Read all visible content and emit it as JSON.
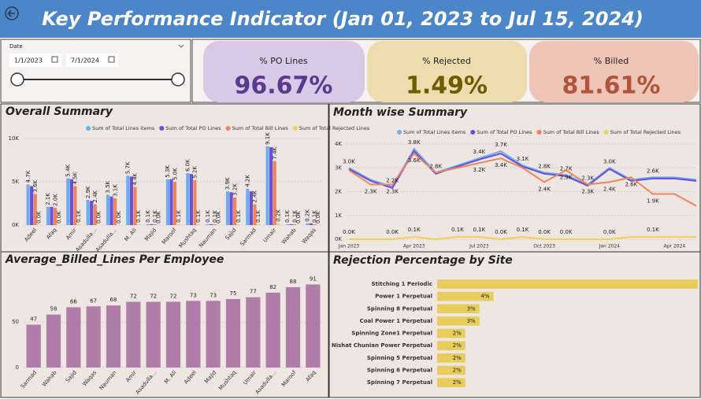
{
  "header": {
    "title": "Key Performance Indicator (Jan 01, 2023 to Jul 15, 2024)"
  },
  "slicer": {
    "label": "Date",
    "start": "1/1/2023",
    "end": "7/1/2024"
  },
  "kpis": [
    {
      "label": "% PO Lines",
      "value": "96.67%"
    },
    {
      "label": "% Rejected",
      "value": "1.49%"
    },
    {
      "label": "% Billed",
      "value": "81.61%"
    }
  ],
  "chart_data": [
    {
      "type": "bar",
      "title": "Overall Summary",
      "categories": [
        "Adeel",
        "Afaq",
        "Amir",
        "Asadulla...",
        "Asadulla...",
        "M. Ali",
        "Majid",
        "Maroof",
        "Mushtaq",
        "Nauman",
        "Sajid",
        "Sarmad",
        "Umair",
        "Wahab",
        "Waqas"
      ],
      "series": [
        {
          "name": "Sum of Total Lines items",
          "color": "#6aaef0",
          "values": [
            4700,
            2100,
            5400,
            2900,
            3500,
            5700,
            100,
            5300,
            6000,
            100,
            3900,
            4200,
            9100,
            100,
            200
          ],
          "value_labels": [
            "4.7K",
            "2.1K",
            "5.4K",
            "2.9K",
            "3.5K",
            "5.7K",
            "0.1K",
            "5.3K",
            "6.0K",
            "0.1K",
            "3.9K",
            "4.2K",
            "9.1K",
            "0.1K",
            "0.2K"
          ]
        },
        {
          "name": "Sum of Total PO Lines",
          "color": "#6a4fd8",
          "values": [
            4500,
            2100,
            5300,
            2800,
            3300,
            5600,
            100,
            5300,
            5900,
            100,
            3800,
            3900,
            9000,
            100,
            200
          ]
        },
        {
          "name": "Sum of Total Bill Lines",
          "color": "#f0845a",
          "values": [
            3600,
            2000,
            4500,
            2400,
            3100,
            4400,
            100,
            5000,
            5200,
            100,
            3200,
            2400,
            7400,
            100,
            100
          ],
          "value_labels": [
            "3.6K",
            "2.0K",
            "4.5K",
            "2.4K",
            "3.1K",
            "4.4K",
            "0.1K",
            "5.0K",
            "5.2K",
            "0.1K",
            "3.2K",
            "2.4K",
            "7.4K",
            "0.1K",
            "0.1K"
          ]
        },
        {
          "name": "Sum of Total Rejected Lines",
          "color": "#f0d060",
          "values": [
            0,
            0,
            100,
            0,
            0,
            100,
            0,
            100,
            100,
            0,
            100,
            100,
            200,
            0,
            0
          ],
          "value_labels": [
            "0.0K",
            "0.0K",
            "0.1K",
            "0.0K",
            "0.0K",
            "0.1K",
            "0.0K",
            "0.1K",
            "0.1K",
            "0.0K",
            "0.1K",
            "0.1K",
            "0.2K",
            "0.0K",
            "0.0K"
          ]
        }
      ],
      "ylim": [
        0,
        10000
      ],
      "yticks": [
        {
          "value": 0,
          "label": "0K"
        },
        {
          "value": 5000,
          "label": "5K"
        },
        {
          "value": 10000,
          "label": "10K"
        }
      ],
      "grid": true,
      "legend": "top"
    },
    {
      "type": "line",
      "title": "Month wise Summary",
      "categories": [
        "Jan 2023",
        null,
        null,
        "Apr 2023",
        null,
        null,
        "Jul 2023",
        null,
        null,
        "Oct 2023",
        null,
        null,
        "Jan 2024",
        null,
        null,
        "Apr 2024",
        null
      ],
      "series": [
        {
          "name": "Sum of Total Lines items",
          "color": "#6aaef0",
          "values": [
            3000,
            2500,
            2200,
            3800,
            2800,
            3100,
            3400,
            3700,
            3100,
            2800,
            2700,
            2300,
            3000,
            2500,
            2600,
            2600,
            2500
          ],
          "value_labels": [
            "3.0K",
            null,
            "2.2K",
            "3.8K",
            "2.8K",
            null,
            "3.4K",
            "3.7K",
            "3.1K",
            "2.8K",
            "2.7K",
            "2.3K",
            "3.0K",
            null,
            "2.6K",
            null,
            null
          ]
        },
        {
          "name": "Sum of Total PO Lines",
          "color": "#6a4fd8",
          "values": [
            2950,
            2450,
            2150,
            3700,
            2750,
            3050,
            3350,
            3600,
            3050,
            2750,
            2650,
            2250,
            2950,
            2450,
            2550,
            2550,
            2450
          ]
        },
        {
          "name": "Sum of Total Bill Lines",
          "color": "#f0845a",
          "values": [
            2900,
            2300,
            2300,
            3600,
            2800,
            3000,
            3200,
            3400,
            3000,
            2400,
            2900,
            2300,
            2400,
            2600,
            1900,
            1900,
            1400
          ],
          "value_labels": [
            null,
            "2.3K",
            "2.3K",
            "3.6K",
            null,
            null,
            "3.2K",
            "3.4K",
            null,
            "2.4K",
            "2.9K",
            "2.3K",
            "2.4K",
            "2.6K",
            "1.9K",
            null,
            null
          ]
        },
        {
          "name": "Sum of Total Rejected Lines",
          "color": "#f0d060",
          "values": [
            0,
            0,
            0,
            100,
            0,
            100,
            100,
            0,
            100,
            0,
            0,
            0,
            0,
            100,
            100,
            100,
            100
          ],
          "value_labels": [
            "0.0K",
            null,
            "0.0K",
            "0.1K",
            null,
            "0.1K",
            "0.1K",
            "0.0K",
            "0.1K",
            "0.0K",
            "0.0K",
            null,
            "0.0K",
            null,
            "0.1K",
            null,
            null
          ]
        }
      ],
      "ylim": [
        0,
        4000
      ],
      "yticks": [
        {
          "value": 0,
          "label": "0K"
        },
        {
          "value": 1000,
          "label": "1K"
        },
        {
          "value": 2000,
          "label": "2K"
        },
        {
          "value": 3000,
          "label": "3K"
        },
        {
          "value": 4000,
          "label": "4K"
        }
      ],
      "grid": true,
      "legend": "top"
    },
    {
      "type": "bar",
      "title": "Average_Billed_Lines Per Employee",
      "categories": [
        "Sarmad",
        "Wahab",
        "Sajid",
        "Waqas",
        "Nauman",
        "Amir",
        "Asadulla...",
        "M. Ali",
        "Adeel",
        "Majid",
        "Mushtaq",
        "Umair",
        "Asadulla...",
        "Maroof",
        "Afaq"
      ],
      "values": [
        47,
        58,
        66,
        67,
        68,
        72,
        72,
        72,
        73,
        73,
        75,
        77,
        82,
        88,
        91
      ],
      "color": "#b07ca8",
      "ylim": [
        0,
        100
      ],
      "yticks": [
        0,
        50
      ],
      "grid": true
    },
    {
      "type": "hbar",
      "title": "Rejection Percentage by Site",
      "categories": [
        "Stitching 1 Periodic",
        "Power 1 Perpetual",
        "Spinning 8 Perpetual",
        "Coal Power 1 Perpetual",
        "Spinning Zone1 Perpetual",
        "Nishat Chunian Power Perpetual",
        "Spinning 5 Perpetual",
        "Spinning 6 Perpetual",
        "Spinning 7 Perpetual"
      ],
      "values": [
        18.5,
        4,
        3,
        3,
        2,
        2,
        2,
        2,
        2
      ],
      "value_labels": [
        null,
        "4%",
        "3%",
        "3%",
        "2%",
        "2%",
        "2%",
        "2%",
        "2%"
      ],
      "color": "#e8cc5c"
    }
  ]
}
